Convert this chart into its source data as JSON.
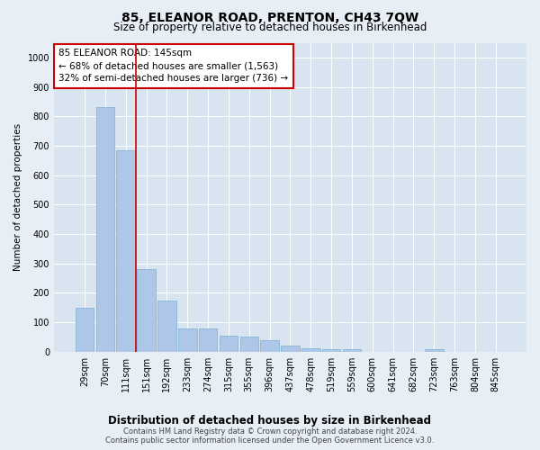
{
  "title": "85, ELEANOR ROAD, PRENTON, CH43 7QW",
  "subtitle": "Size of property relative to detached houses in Birkenhead",
  "xlabel": "Distribution of detached houses by size in Birkenhead",
  "ylabel": "Number of detached properties",
  "categories": [
    "29sqm",
    "70sqm",
    "111sqm",
    "151sqm",
    "192sqm",
    "233sqm",
    "274sqm",
    "315sqm",
    "355sqm",
    "396sqm",
    "437sqm",
    "478sqm",
    "519sqm",
    "559sqm",
    "600sqm",
    "641sqm",
    "682sqm",
    "723sqm",
    "763sqm",
    "804sqm",
    "845sqm"
  ],
  "values": [
    150,
    830,
    685,
    280,
    175,
    80,
    78,
    53,
    52,
    40,
    22,
    13,
    8,
    8,
    0,
    0,
    0,
    8,
    0,
    0,
    0
  ],
  "bar_color": "#aec6e8",
  "bar_edge_color": "#7aafd4",
  "vline_color": "#cc0000",
  "vline_x_index": 2.5,
  "annotation_text": "85 ELEANOR ROAD: 145sqm\n← 68% of detached houses are smaller (1,563)\n32% of semi-detached houses are larger (736) →",
  "annotation_box_facecolor": "#ffffff",
  "annotation_box_edgecolor": "#cc0000",
  "ylim": [
    0,
    1050
  ],
  "yticks": [
    0,
    100,
    200,
    300,
    400,
    500,
    600,
    700,
    800,
    900,
    1000
  ],
  "footer_line1": "Contains HM Land Registry data © Crown copyright and database right 2024.",
  "footer_line2": "Contains public sector information licensed under the Open Government Licence v3.0.",
  "bg_color": "#e8eef5",
  "plot_bg_color": "#d8e4f0",
  "title_fontsize": 10,
  "subtitle_fontsize": 8.5,
  "ylabel_fontsize": 7.5,
  "xlabel_fontsize": 8.5,
  "tick_fontsize": 7,
  "annotation_fontsize": 7.5,
  "footer_fontsize": 6
}
